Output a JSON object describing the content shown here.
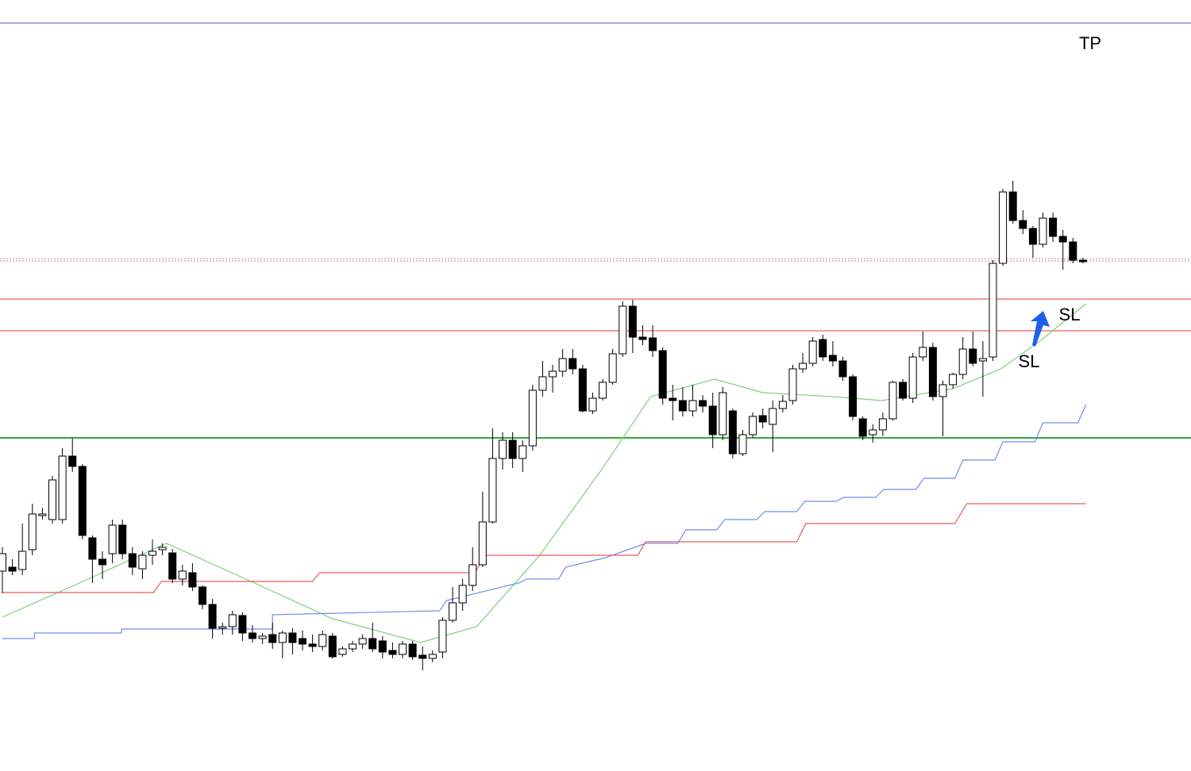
{
  "chart_data": {
    "type": "candlestick",
    "ylim": [
      0,
      972
    ],
    "xlim": [
      -0.238,
      118.8
    ],
    "up_color": "#ffffff",
    "down_color": "#000000",
    "open": [
      252,
      257,
      254,
      279,
      322,
      317,
      317,
      397,
      384,
      294,
      267,
      274,
      310,
      274,
      255,
      272,
      279,
      275,
      242,
      250,
      232,
      210,
      180,
      182,
      196,
      174,
      167,
      172,
      162,
      174,
      167,
      160,
      157,
      170,
      147,
      154,
      160,
      167,
      164,
      152,
      147,
      160,
      146,
      142,
      150,
      190,
      212,
      234,
      260,
      314,
      394,
      417,
      394,
      410,
      480,
      497,
      504,
      520,
      507,
      454,
      470,
      490,
      526,
      586,
      547,
      546,
      530,
      470,
      467,
      454,
      467,
      460,
      424,
      454,
      400,
      424,
      448,
      437,
      457,
      467,
      507,
      514,
      544,
      524,
      517,
      497,
      444,
      424,
      430,
      444,
      490,
      470,
      522,
      534,
      472,
      487,
      500,
      532,
      517,
      522,
      640,
      730,
      694,
      684,
      664,
      697,
      674,
      667,
      644
    ],
    "close": [
      274,
      252,
      277,
      324,
      324,
      367,
      397,
      384,
      297,
      267,
      260,
      310,
      274,
      257,
      272,
      277,
      282,
      242,
      252,
      232,
      210,
      180,
      182,
      197,
      174,
      167,
      170,
      162,
      174,
      162,
      160,
      157,
      172,
      144,
      154,
      160,
      167,
      154,
      150,
      147,
      160,
      144,
      142,
      147,
      190,
      212,
      234,
      260,
      314,
      394,
      417,
      394,
      410,
      480,
      497,
      504,
      520,
      507,
      454,
      470,
      490,
      526,
      586,
      547,
      544,
      530,
      470,
      467,
      454,
      467,
      460,
      424,
      477,
      400,
      424,
      447,
      440,
      457,
      466,
      507,
      514,
      542,
      522,
      517,
      497,
      447,
      422,
      430,
      444,
      490,
      470,
      522,
      534,
      472,
      487,
      500,
      532,
      514,
      520,
      640,
      730,
      694,
      684,
      664,
      697,
      674,
      667,
      644,
      642
    ],
    "high": [
      282,
      267,
      312,
      337,
      332,
      372,
      407,
      419,
      387,
      297,
      277,
      317,
      317,
      282,
      277,
      292,
      287,
      280,
      260,
      262,
      234,
      217,
      187,
      202,
      200,
      184,
      174,
      187,
      177,
      180,
      177,
      172,
      177,
      174,
      157,
      164,
      172,
      187,
      170,
      162,
      164,
      164,
      157,
      152,
      194,
      232,
      242,
      282,
      352,
      432,
      427,
      427,
      417,
      487,
      517,
      512,
      532,
      532,
      512,
      477,
      494,
      532,
      592,
      594,
      562,
      562,
      534,
      487,
      484,
      487,
      474,
      477,
      484,
      457,
      430,
      452,
      457,
      467,
      474,
      512,
      527,
      547,
      550,
      542,
      522,
      500,
      447,
      437,
      452,
      492,
      494,
      527,
      554,
      540,
      492,
      502,
      547,
      554,
      542,
      644,
      734,
      744,
      707,
      687,
      704,
      704,
      682,
      672,
      647
    ],
    "low": [
      224,
      247,
      247,
      272,
      317,
      312,
      312,
      377,
      292,
      237,
      242,
      262,
      267,
      247,
      242,
      260,
      272,
      237,
      234,
      227,
      204,
      167,
      172,
      172,
      164,
      162,
      160,
      154,
      142,
      147,
      152,
      150,
      152,
      142,
      144,
      150,
      154,
      150,
      142,
      142,
      142,
      140,
      127,
      137,
      142,
      187,
      202,
      227,
      257,
      312,
      380,
      382,
      377,
      404,
      472,
      477,
      497,
      500,
      452,
      450,
      467,
      487,
      522,
      527,
      537,
      522,
      462,
      442,
      447,
      447,
      452,
      407,
      417,
      394,
      397,
      420,
      432,
      402,
      452,
      462,
      502,
      510,
      517,
      510,
      492,
      442,
      417,
      414,
      422,
      442,
      467,
      464,
      517,
      467,
      422,
      482,
      494,
      510,
      472,
      517,
      637,
      690,
      677,
      647,
      660,
      667,
      632,
      640,
      640
    ],
    "lines": [
      {
        "color": "#7fcf7f",
        "x": [
          0,
          7.7,
          16.4,
          25.2,
          33,
          41.8,
          47.4,
          53.7,
          60,
          64.8,
          71.2,
          76,
          83,
          87.9,
          95,
          99.8,
          103.7,
          108.3
        ],
        "values": [
          194,
          237,
          287,
          237,
          192,
          162,
          182,
          272,
          382,
          472,
          494,
          477,
          472,
          467,
          482,
          507,
          542,
          589
        ]
      },
      {
        "color": "#6f8fe8",
        "x": [
          0,
          3.2,
          3.2,
          11.9,
          11.9,
          27,
          27,
          43.7,
          44.4,
          51.6,
          52.4,
          55.6,
          56.3,
          60.3,
          64.3,
          67.5,
          68.3,
          71.4,
          72.2,
          75.4,
          76.2,
          79.4,
          80.2,
          83.3,
          84.1,
          87.3,
          88.1,
          91.3,
          92.1,
          95.2,
          96,
          99.2,
          100,
          103.2,
          104,
          107.5,
          108.3
        ],
        "values": [
          167,
          167,
          174,
          174,
          179,
          179,
          197,
          202,
          215,
          237,
          242,
          242,
          257,
          269,
          287,
          287,
          304,
          304,
          317,
          317,
          327,
          327,
          340,
          340,
          345,
          345,
          355,
          355,
          369,
          369,
          392,
          392,
          415,
          415,
          439,
          439,
          462
        ]
      },
      {
        "color": "#e85a5a",
        "x": [
          0,
          15.1,
          15.9,
          31,
          31.7,
          47.2,
          48.3,
          63.5,
          64.3,
          79.4,
          80.3,
          95.2,
          96.4,
          108.3
        ],
        "values": [
          225,
          225,
          239,
          239,
          250,
          250,
          272,
          272,
          289,
          289,
          312,
          312,
          337,
          337
        ]
      }
    ],
    "hlines": [
      {
        "value": 943,
        "color": "#b3a6e6",
        "dashed": false,
        "width": 2
      },
      {
        "value": 646,
        "color": "#9a9ad8",
        "dashed": true,
        "width": 1
      },
      {
        "value": 643,
        "color": "#e07070",
        "dashed": true,
        "width": 1
      },
      {
        "value": 595,
        "color": "#f29a9a",
        "dashed": false,
        "width": 2
      },
      {
        "value": 555,
        "color": "#f29a9a",
        "dashed": false,
        "width": 2
      },
      {
        "value": 420,
        "color": "#3aa63a",
        "dashed": false,
        "width": 2
      }
    ],
    "annotations": [
      "TP",
      "SL",
      "SL"
    ]
  }
}
